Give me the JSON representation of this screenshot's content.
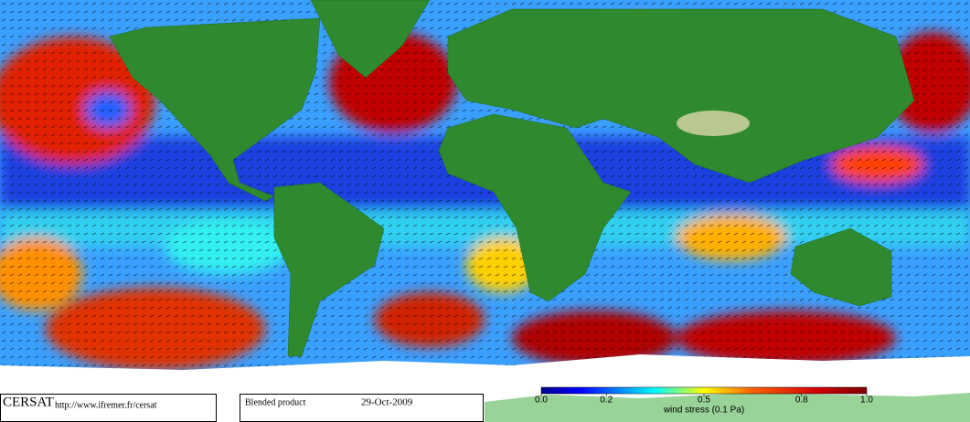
{
  "footer": {
    "logo": "CERSAT",
    "url": "http://www.ifremer.fr/cersat",
    "product": "Blended product",
    "date": "29-Oct-2009"
  },
  "colorbar": {
    "label": "wind stress (0.1 Pa)",
    "lim": [
      0,
      1
    ],
    "ticks": [
      {
        "value": 0,
        "label": "0.0"
      },
      0.2,
      0.5,
      0.8,
      {
        "value": 1,
        "label": "1.0"
      }
    ]
  }
}
